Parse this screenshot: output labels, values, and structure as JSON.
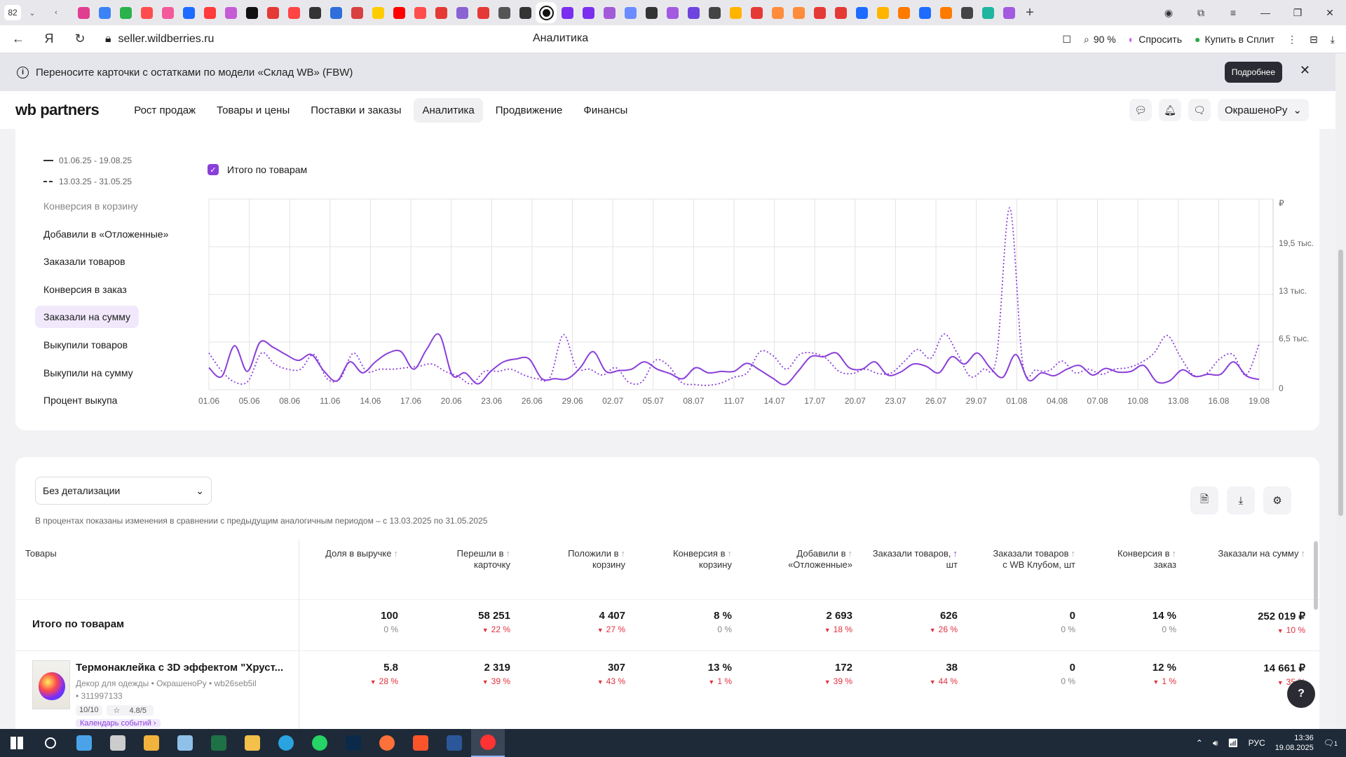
{
  "browser": {
    "tab_count": "82",
    "url": "seller.wildberries.ru",
    "page_title": "Аналитика",
    "zoom": "90 %",
    "ask_label": "Спросить",
    "split_label": "Купить в Сплит"
  },
  "banner": {
    "text": "Переносите карточки с остатками по модели «Склад WB» (FBW)",
    "details_button": "Подробнее"
  },
  "nav": {
    "logo_wb": "wb",
    "logo_partners": "partners",
    "items": [
      "Рост продаж",
      "Товары и цены",
      "Поставки и заказы",
      "Аналитика",
      "Продвижение",
      "Финансы"
    ],
    "account": "ОкрашеноРу"
  },
  "chart_panel": {
    "periods": [
      "01.06.25 - 19.08.25",
      "13.03.25 - 31.05.25"
    ],
    "metrics": [
      "Конверсия в корзину",
      "Добавили в «Отложенные»",
      "Заказали товаров",
      "Конверсия в заказ",
      "Заказали на сумму",
      "Выкупили товаров",
      "Выкупили на сумму",
      "Процент выкупа"
    ],
    "checkbox_label": "Итого по товарам"
  },
  "chart_data": {
    "type": "line",
    "ylabel": "₽",
    "ytick_labels": [
      "0",
      "6,5 тыс.",
      "13 тыс.",
      "19,5 тыс."
    ],
    "ylim": [
      0,
      26000
    ],
    "x_tick_labels": [
      "01.06",
      "05.06",
      "08.06",
      "11.06",
      "14.06",
      "17.06",
      "20.06",
      "23.06",
      "26.06",
      "29.06",
      "02.07",
      "05.07",
      "08.07",
      "11.07",
      "14.07",
      "17.07",
      "20.07",
      "23.07",
      "26.07",
      "29.07",
      "01.08",
      "04.08",
      "07.08",
      "10.08",
      "13.08",
      "16.08",
      "19.08"
    ],
    "series": [
      {
        "name": "01.06.25 - 19.08.25",
        "style": "solid",
        "color": "#8b3fd9",
        "values": [
          3000,
          1800,
          6000,
          2500,
          6500,
          5800,
          4800,
          4000,
          4800,
          2500,
          1200,
          3800,
          2300,
          3800,
          5000,
          5200,
          2800,
          5500,
          7500,
          2000,
          2300,
          800,
          2500,
          3800,
          4200,
          4200,
          1500,
          1500,
          1500,
          3000,
          5200,
          2500,
          2600,
          2800,
          3800,
          2800,
          2200,
          1500,
          3000,
          2300,
          2500,
          2500,
          3600,
          2700,
          1600,
          700,
          2500,
          4500,
          4500,
          5000,
          3000,
          2800,
          3800,
          2000,
          2400,
          3500,
          3200,
          2300,
          4500,
          3500,
          5000,
          3000,
          1700,
          4800,
          1300,
          2300,
          1900,
          2800,
          3300,
          2000,
          2900,
          2400,
          2500,
          3300,
          1100,
          1200,
          2700,
          1800,
          2100,
          2100,
          3800,
          1900,
          1400
        ]
      },
      {
        "name": "13.03.25 - 31.05.25",
        "style": "dotted",
        "color": "#8b3fd9",
        "values": [
          5000,
          2500,
          1000,
          1200,
          5000,
          3500,
          2800,
          2800,
          4800,
          1500,
          1500,
          5000,
          2500,
          2800,
          2800,
          3000,
          3200,
          3500,
          2500,
          1800,
          800,
          2500,
          2500,
          2800,
          2000,
          1500,
          1700,
          7500,
          3000,
          2800,
          2000,
          3000,
          1000,
          1100,
          4000,
          3300,
          1000,
          700,
          600,
          900,
          1700,
          2300,
          5200,
          4600,
          2800,
          4800,
          5000,
          4300,
          2500,
          2200,
          2800,
          2200,
          2300,
          3900,
          5500,
          4300,
          7600,
          5000,
          1800,
          2800,
          4400,
          24800,
          3500,
          2700,
          2600,
          3900,
          2300,
          2800,
          2100,
          2800,
          3000,
          3700,
          5000,
          7400,
          4500,
          2000,
          2200,
          4200,
          4800,
          2000,
          6200
        ]
      }
    ]
  },
  "table": {
    "detail_select": "Без детализации",
    "note": "В процентах показаны изменения в сравнении с предыдущим аналогичным периодом – с 13.03.2025 по 31.05.2025",
    "columns": [
      {
        "l1": "Товары",
        "l2": ""
      },
      {
        "l1": "Доля в выручке",
        "l2": ""
      },
      {
        "l1": "Перешли в",
        "l2": "карточку"
      },
      {
        "l1": "Положили в",
        "l2": "корзину"
      },
      {
        "l1": "Конверсия в",
        "l2": "корзину"
      },
      {
        "l1": "Добавили в",
        "l2": "«Отложенные»"
      },
      {
        "l1": "Заказали товаров,",
        "l2": "шт"
      },
      {
        "l1": "Заказали товаров",
        "l2": "с WB Клубом, шт"
      },
      {
        "l1": "Конверсия в",
        "l2": "заказ"
      },
      {
        "l1": "Заказали на сумму",
        "l2": ""
      }
    ],
    "total": {
      "label": "Итого по товарам",
      "cells": [
        {
          "v": "100",
          "d": "0 %",
          "neg": false
        },
        {
          "v": "58 251",
          "d": "22 %",
          "neg": true
        },
        {
          "v": "4 407",
          "d": "27 %",
          "neg": true
        },
        {
          "v": "8 %",
          "d": "0 %",
          "neg": false
        },
        {
          "v": "2 693",
          "d": "18 %",
          "neg": true
        },
        {
          "v": "626",
          "d": "26 %",
          "neg": true
        },
        {
          "v": "0",
          "d": "0 %",
          "neg": false
        },
        {
          "v": "14 %",
          "d": "0 %",
          "neg": false
        },
        {
          "v": "252 019 ₽",
          "d": "10 %",
          "neg": true
        }
      ]
    },
    "product": {
      "title": "Термонаклейка с 3D эффектом \"Хруст...",
      "subtitle": "Декор для одежды • ОкрашеноРу • wb26seb5il",
      "sku": "• 311997133",
      "rating_count": "10/10",
      "rating": "4.8/5",
      "link": "Календарь событий",
      "cells": [
        {
          "v": "5.8",
          "d": "28 %",
          "neg": true
        },
        {
          "v": "2 319",
          "d": "39 %",
          "neg": true
        },
        {
          "v": "307",
          "d": "43 %",
          "neg": true
        },
        {
          "v": "13 %",
          "d": "1 %",
          "neg": true
        },
        {
          "v": "172",
          "d": "39 %",
          "neg": true
        },
        {
          "v": "38",
          "d": "44 %",
          "neg": true
        },
        {
          "v": "0",
          "d": "0 %",
          "neg": false
        },
        {
          "v": "12 %",
          "d": "1 %",
          "neg": true
        },
        {
          "v": "14 661 ₽",
          "d": "35 %",
          "neg": true
        }
      ]
    }
  },
  "taskbar": {
    "lang": "РУС",
    "time": "13:36",
    "date": "19.08.2025",
    "notif_count": "1"
  }
}
